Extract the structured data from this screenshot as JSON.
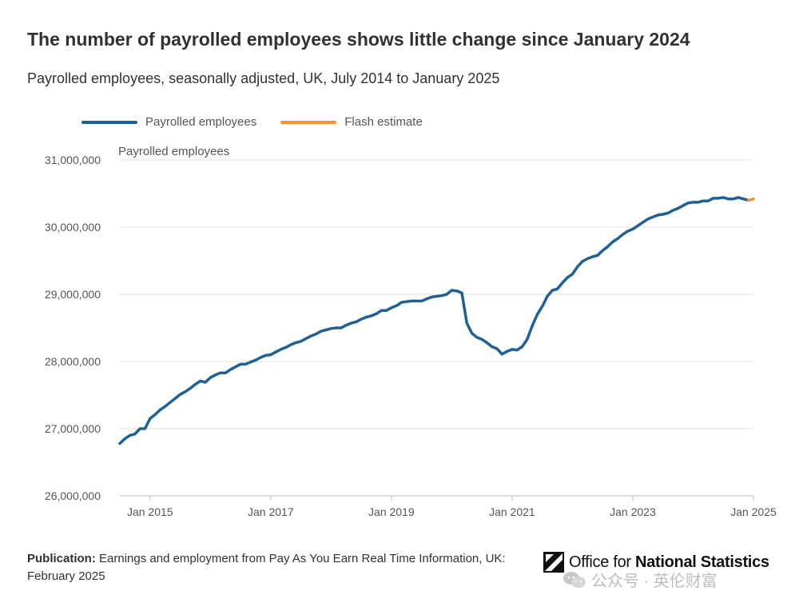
{
  "title": "The number of payrolled employees shows little change since January 2024",
  "subtitle": "Payrolled employees, seasonally adjusted, UK, July 2014 to January 2025",
  "legend": [
    {
      "label": "Payrolled employees",
      "color": "#206095"
    },
    {
      "label": "Flash estimate",
      "color": "#f39431"
    }
  ],
  "footer": {
    "publication_label": "Publication:",
    "publication_text": "Earnings and employment from Pay As You Earn Real Time Information, UK: February 2025"
  },
  "logo": {
    "light": "Office for ",
    "bold": "National Statistics"
  },
  "watermark": {
    "text": "公众号 · 英伦财富"
  },
  "chart_data": {
    "type": "line",
    "ylabel": "Payrolled employees",
    "ylim": [
      26000000,
      31000000
    ],
    "y_ticks": [
      26000000,
      27000000,
      28000000,
      29000000,
      30000000,
      31000000
    ],
    "y_tick_labels": [
      "26,000,000",
      "27,000,000",
      "28,000,000",
      "29,000,000",
      "30,000,000",
      "31,000,000"
    ],
    "x_ticks": [
      "2015-01",
      "2017-01",
      "2019-01",
      "2021-01",
      "2023-01",
      "2025-01"
    ],
    "x_tick_labels": [
      "Jan 2015",
      "Jan 2017",
      "Jan 2019",
      "Jan 2021",
      "Jan 2023",
      "Jan 2025"
    ],
    "grid": true,
    "legend_position": "top-left",
    "series": [
      {
        "name": "Payrolled employees",
        "color": "#206095",
        "x": [
          "2014-07",
          "2014-08",
          "2014-09",
          "2014-10",
          "2014-11",
          "2014-12",
          "2015-01",
          "2015-02",
          "2015-03",
          "2015-04",
          "2015-05",
          "2015-06",
          "2015-07",
          "2015-08",
          "2015-09",
          "2015-10",
          "2015-11",
          "2015-12",
          "2016-01",
          "2016-02",
          "2016-03",
          "2016-04",
          "2016-05",
          "2016-06",
          "2016-07",
          "2016-08",
          "2016-09",
          "2016-10",
          "2016-11",
          "2016-12",
          "2017-01",
          "2017-02",
          "2017-03",
          "2017-04",
          "2017-05",
          "2017-06",
          "2017-07",
          "2017-08",
          "2017-09",
          "2017-10",
          "2017-11",
          "2017-12",
          "2018-01",
          "2018-02",
          "2018-03",
          "2018-04",
          "2018-05",
          "2018-06",
          "2018-07",
          "2018-08",
          "2018-09",
          "2018-10",
          "2018-11",
          "2018-12",
          "2019-01",
          "2019-02",
          "2019-03",
          "2019-04",
          "2019-05",
          "2019-06",
          "2019-07",
          "2019-08",
          "2019-09",
          "2019-10",
          "2019-11",
          "2019-12",
          "2020-01",
          "2020-02",
          "2020-03",
          "2020-04",
          "2020-05",
          "2020-06",
          "2020-07",
          "2020-08",
          "2020-09",
          "2020-10",
          "2020-11",
          "2020-12",
          "2021-01",
          "2021-02",
          "2021-03",
          "2021-04",
          "2021-05",
          "2021-06",
          "2021-07",
          "2021-08",
          "2021-09",
          "2021-10",
          "2021-11",
          "2021-12",
          "2022-01",
          "2022-02",
          "2022-03",
          "2022-04",
          "2022-05",
          "2022-06",
          "2022-07",
          "2022-08",
          "2022-09",
          "2022-10",
          "2022-11",
          "2022-12",
          "2023-01",
          "2023-02",
          "2023-03",
          "2023-04",
          "2023-05",
          "2023-06",
          "2023-07",
          "2023-08",
          "2023-09",
          "2023-10",
          "2023-11",
          "2023-12",
          "2024-01",
          "2024-02",
          "2024-03",
          "2024-04",
          "2024-05",
          "2024-06",
          "2024-07",
          "2024-08",
          "2024-09",
          "2024-10",
          "2024-11",
          "2024-12"
        ],
        "values": [
          26780000,
          26850000,
          26900000,
          26920000,
          27000000,
          27000000,
          27150000,
          27210000,
          27280000,
          27330000,
          27390000,
          27450000,
          27510000,
          27550000,
          27600000,
          27660000,
          27710000,
          27690000,
          27760000,
          27800000,
          27830000,
          27830000,
          27880000,
          27920000,
          27960000,
          27960000,
          27990000,
          28020000,
          28060000,
          28090000,
          28100000,
          28140000,
          28180000,
          28210000,
          28250000,
          28280000,
          28300000,
          28340000,
          28380000,
          28410000,
          28450000,
          28470000,
          28490000,
          28500000,
          28500000,
          28540000,
          28570000,
          28590000,
          28630000,
          28660000,
          28680000,
          28710000,
          28760000,
          28760000,
          28800000,
          28830000,
          28880000,
          28890000,
          28900000,
          28900000,
          28900000,
          28930000,
          28960000,
          28970000,
          28980000,
          29000000,
          29060000,
          29050000,
          29020000,
          28570000,
          28420000,
          28360000,
          28330000,
          28280000,
          28220000,
          28190000,
          28110000,
          28150000,
          28180000,
          28170000,
          28220000,
          28330000,
          28530000,
          28700000,
          28820000,
          28970000,
          29060000,
          29080000,
          29170000,
          29250000,
          29300000,
          29410000,
          29490000,
          29530000,
          29560000,
          29580000,
          29650000,
          29710000,
          29780000,
          29830000,
          29890000,
          29940000,
          29970000,
          30020000,
          30070000,
          30120000,
          30150000,
          30180000,
          30190000,
          30210000,
          30250000,
          30280000,
          30320000,
          30360000,
          30370000,
          30370000,
          30390000,
          30390000,
          30430000,
          30430000,
          30440000,
          30420000,
          30420000,
          30440000,
          30420000,
          30400000
        ]
      },
      {
        "name": "Flash estimate",
        "color": "#f39431",
        "x": [
          "2024-12",
          "2025-01"
        ],
        "values": [
          30400000,
          30420000
        ]
      }
    ]
  }
}
